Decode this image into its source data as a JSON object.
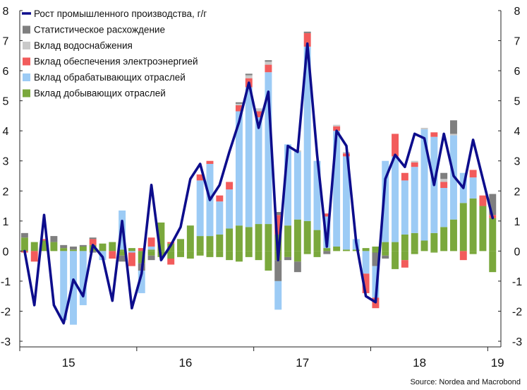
{
  "chart_data": {
    "type": "stacked-bar-line",
    "source": "Source: Nordea and Macrobond",
    "ylim": [
      -3,
      8
    ],
    "yticks": [
      "-3",
      "-2",
      "-1",
      "0",
      "1",
      "2",
      "3",
      "4",
      "5",
      "6",
      "7",
      "8"
    ],
    "year_labels": [
      {
        "label": "15",
        "index": 4.5
      },
      {
        "label": "16",
        "index": 16.5
      },
      {
        "label": "17",
        "index": 28.5
      },
      {
        "label": "18",
        "index": 40.5
      },
      {
        "label": "19",
        "index": 48.5
      }
    ],
    "year_boundaries": [
      -0.5,
      11.5,
      23.5,
      35.5,
      47.5
    ],
    "legend": [
      {
        "key": "line",
        "label": "Рост промышленного производства, г/г",
        "color": "#0d0d8c",
        "kind": "line"
      },
      {
        "key": "stat",
        "label": "Статистическое расхождение",
        "color": "#7f7f7f",
        "kind": "box"
      },
      {
        "key": "water",
        "label": "Вклад водоснабжения",
        "color": "#c9c9c9",
        "kind": "box"
      },
      {
        "key": "elec",
        "label": "Вклад обеспечения электроэнергией",
        "color": "#f25b5b",
        "kind": "box"
      },
      {
        "key": "manuf",
        "label": "Вклад обрабатывающих отраслей",
        "color": "#9ccbf5",
        "kind": "box"
      },
      {
        "key": "mining",
        "label": "Вклад добывающих отраслей",
        "color": "#7aa83c",
        "kind": "box"
      }
    ],
    "series": {
      "mining": [
        0.45,
        0.3,
        0.35,
        0.3,
        0.1,
        0.05,
        0.15,
        0.2,
        0.25,
        0.3,
        0.05,
        0.1,
        0.0,
        0.05,
        0.95,
        0.25,
        0.4,
        0.85,
        0.5,
        0.5,
        0.55,
        0.75,
        0.85,
        0.8,
        0.9,
        0.9,
        0.55,
        0.85,
        1.05,
        1.0,
        0.7,
        0.1,
        0.15,
        0.05,
        0.05,
        0.1,
        0.15,
        0.3,
        0.3,
        0.55,
        0.6,
        0.35,
        0.6,
        0.8,
        1.05,
        1.6,
        1.75,
        1.5,
        1.1
      ],
      "manuf": [
        0.0,
        0.0,
        0.0,
        0.0,
        -2.3,
        -2.45,
        -1.8,
        0.0,
        -0.3,
        0.0,
        1.3,
        -0.05,
        -0.75,
        0.1,
        0.0,
        0.0,
        0.0,
        0.0,
        1.85,
        2.4,
        1.1,
        1.3,
        3.8,
        4.65,
        3.55,
        5.05,
        -0.95,
        2.7,
        2.25,
        5.8,
        2.3,
        1.05,
        3.85,
        3.1,
        0.35,
        -0.75,
        -1.05,
        2.7,
        2.85,
        1.8,
        2.2,
        3.7,
        3.2,
        1.3,
        2.8,
        1.0,
        0.7,
        0.0,
        0.0
      ],
      "elec": [
        0.0,
        0.0,
        0.0,
        -0.25,
        0.0,
        0.0,
        0.0,
        0.1,
        -0.05,
        0.0,
        0.0,
        -0.2,
        0.0,
        0.0,
        0.0,
        0.0,
        0.0,
        -0.45,
        0.0,
        0.0,
        0.0,
        0.0,
        0.0,
        0.0,
        0.0,
        0.0,
        0.0,
        -0.5,
        0.0,
        0.45,
        0.2,
        0.0,
        0.0,
        0.0,
        0.0,
        0.0,
        0.0,
        0.0,
        0.0,
        0.0,
        0.0,
        0.0,
        0.0,
        0.0,
        0.0,
        0.0,
        0.0,
        0.0,
        0.0
      ],
      "water": [
        0.0,
        0.0,
        0.0,
        0.0,
        0.0,
        0.0,
        0.0,
        0.0,
        0.0,
        0.0,
        0.0,
        0.0,
        0.0,
        0.0,
        0.0,
        0.0,
        0.0,
        0.0,
        0.0,
        0.0,
        0.0,
        0.0,
        0.0,
        0.0,
        0.0,
        0.0,
        0.0,
        0.0,
        0.0,
        0.0,
        0.0,
        0.0,
        0.0,
        0.0,
        0.0,
        0.0,
        0.0,
        0.0,
        0.0,
        0.0,
        0.0,
        0.0,
        0.0,
        0.0,
        0.0,
        0.0,
        0.0,
        0.0,
        0.0
      ],
      "stat": [
        0.0,
        0.0,
        0.0,
        0.0,
        0.0,
        0.0,
        0.0,
        0.0,
        0.0,
        0.0,
        0.0,
        0.0,
        0.0,
        0.0,
        0.0,
        0.0,
        0.0,
        0.0,
        0.0,
        0.0,
        0.0,
        0.0,
        0.0,
        0.0,
        0.0,
        0.0,
        0.0,
        0.0,
        0.0,
        0.0,
        0.0,
        0.0,
        0.0,
        0.0,
        0.0,
        0.0,
        0.0,
        0.0,
        0.0,
        0.0,
        0.0,
        0.0,
        0.0,
        0.0,
        0.0,
        0.0,
        0.0,
        0.0,
        0.0
      ],
      "line": [
        0.0,
        -1.8,
        1.2,
        -1.8,
        -2.4,
        -0.95,
        -1.5,
        0.2,
        -0.2,
        -1.65,
        1.0,
        -1.9,
        -0.75,
        2.2,
        -0.3,
        0.2,
        0.8,
        2.4,
        2.9,
        1.7,
        2.2,
        3.3,
        4.3,
        5.6,
        4.1,
        5.3,
        -0.3,
        3.5,
        3.3,
        6.9,
        3.2,
        0.15,
        4.0,
        3.5,
        0.3,
        -1.5,
        -1.7,
        2.4,
        3.2,
        2.8,
        3.9,
        3.75,
        2.2,
        3.9,
        2.5,
        2.1,
        3.7,
        2.4,
        1.1
      ]
    },
    "negative_extras": {
      "mining_neg": [
        0,
        0,
        0,
        0,
        0,
        0,
        0,
        0,
        0,
        0,
        -0.15,
        0,
        -0.4,
        -0.15,
        -0.2,
        -0.25,
        -0.2,
        -0.25,
        -0.15,
        -0.2,
        -0.2,
        -0.3,
        -0.35,
        -0.2,
        -0.3,
        -0.65,
        -0.3,
        -0.2,
        -0.35,
        -0.1,
        -0.2,
        0,
        0,
        0,
        0,
        0,
        -0.05,
        -0.15,
        -0.6,
        -0.3,
        -0.1,
        0,
        -0.05,
        0,
        0,
        0,
        -0.1,
        0,
        -0.7
      ],
      "elec_neg": [
        -0.05,
        -0.35,
        0,
        0,
        0,
        0,
        0,
        0,
        0,
        -0.25,
        0,
        -0.45,
        0,
        0,
        0,
        -0.2,
        0,
        0,
        0,
        0,
        0,
        0,
        0,
        0,
        0,
        0,
        0,
        0,
        0,
        0,
        0,
        0,
        0,
        0,
        0,
        -0.65,
        -0.35,
        0,
        0,
        -0.25,
        0,
        0,
        0,
        0,
        0,
        -0.3,
        0,
        0,
        0
      ],
      "elec_pos": [
        0,
        0,
        0.05,
        0,
        0,
        0,
        0,
        0.2,
        0,
        0,
        0,
        0,
        0.1,
        0.3,
        0,
        0.05,
        0,
        0,
        0.2,
        0.1,
        0.2,
        0.25,
        0.2,
        0.3,
        0.2,
        0.25,
        0.65,
        0,
        0,
        0.45,
        0,
        0.1,
        0.15,
        0.1,
        0,
        0,
        0,
        0,
        0.75,
        0.25,
        0.15,
        0,
        0.15,
        0.2,
        0,
        0,
        0.25,
        0.35,
        0.1
      ],
      "water_pos": [
        0,
        0,
        0,
        0,
        0,
        0,
        0,
        0,
        0,
        0,
        0,
        0,
        0,
        0,
        0,
        0,
        0,
        0,
        0,
        0,
        0,
        0,
        0.05,
        0.1,
        0.1,
        0.1,
        0,
        0,
        0.05,
        0,
        0,
        0,
        0.05,
        0.05,
        0,
        0,
        0,
        0,
        0,
        0,
        0.05,
        0.05,
        0,
        0.1,
        0.05,
        0,
        0,
        0,
        0
      ],
      "stat_pos": [
        0.15,
        0.0,
        0.0,
        0.2,
        0.1,
        0.1,
        0.05,
        0.05,
        0.0,
        0.0,
        0.0,
        0.0,
        0.0,
        0.0,
        0.0,
        0.0,
        0.0,
        0.0,
        0.0,
        0.0,
        0.0,
        0.0,
        0.05,
        0.05,
        0.0,
        0.05,
        0.1,
        0.0,
        0.0,
        0.05,
        0.0,
        0.0,
        0.0,
        0.0,
        0.0,
        0.0,
        0.0,
        0.0,
        0.0,
        0.0,
        0.0,
        0.0,
        0.0,
        0.2,
        0.45,
        0.0,
        0.0,
        0.0,
        0.7
      ],
      "stat_neg": [
        0,
        0,
        0,
        0,
        0,
        0,
        0,
        -0.05,
        0,
        0,
        -0.2,
        0,
        -0.25,
        -0.15,
        0,
        0,
        0,
        0,
        0,
        0,
        0,
        0,
        0,
        0,
        0,
        0,
        -0.7,
        -0.1,
        -0.35,
        0,
        0,
        -0.1,
        0,
        0,
        0,
        0,
        -0.45,
        -0.1,
        0,
        0,
        0,
        0,
        0,
        0,
        0,
        0,
        0,
        0,
        0
      ]
    }
  }
}
